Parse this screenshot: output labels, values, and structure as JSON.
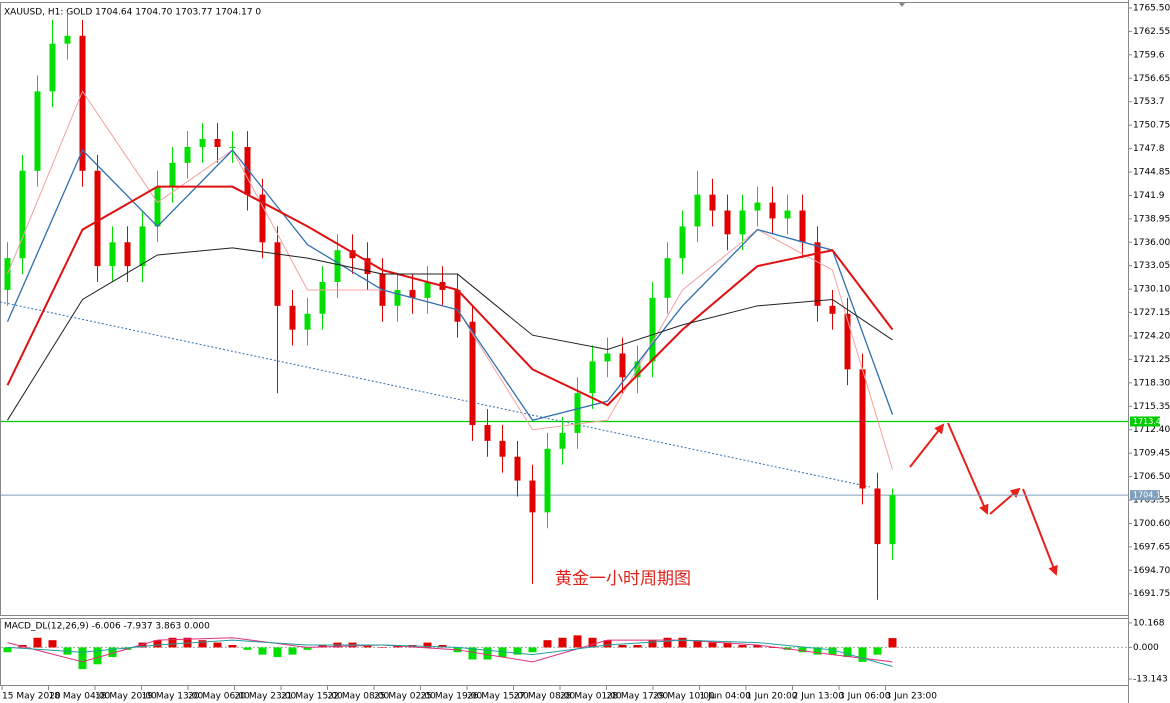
{
  "chart_data": {
    "type": "candlestick",
    "title": "XAUUSD, H1: GOLD 1704.64 1704.70 1703.77 1704.17 0",
    "annotation": "黄金一小时周期图",
    "ylim": [
      1689.2,
      1766.0
    ],
    "yticks": [
      {
        "value": 1765.5,
        "label": "1765.50"
      },
      1762.55,
      1759.6,
      1756.65,
      1753.7,
      1750.75,
      1747.8,
      1744.85,
      1741.9,
      1738.95,
      {
        "value": 1736,
        "label": "1736.00"
      },
      1733.05,
      {
        "value": 1730.1,
        "label": "1730.10"
      },
      1727.15,
      {
        "value": 1724.2,
        "label": "1724.20"
      },
      1721.25,
      {
        "value": 1718.3,
        "label": "1718.30"
      },
      1715.35,
      {
        "value": 1712.4,
        "label": "1712.40"
      },
      1709.45,
      {
        "value": 1706.5,
        "label": "1706.50"
      },
      1703.55,
      {
        "value": 1700.6,
        "label": "1700.60"
      },
      1697.65,
      {
        "value": 1694.7,
        "label": "1694.70"
      },
      1691.75
    ],
    "xlabels": [
      "15 May 2020",
      "18 May 04:00",
      "18 May 20:00",
      "19 May 13:00",
      "20 May 06:00",
      "20 May 23:00",
      "21 May 15:00",
      "22 May 08:00",
      "25 May 02:00",
      "25 May 19:00",
      "26 May 15:00",
      "27 May 08:00",
      "28 May 01:00",
      "28 May 17:00",
      "29 May 10:00",
      "1 Jun 04:00",
      "1 Jun 20:00",
      "2 Jun 13:00",
      "3 Jun 06:00",
      "3 Jun 23:00"
    ],
    "up_color": "#00e000",
    "down_color": "#e00000",
    "open": [
      1730,
      1734,
      1745,
      1755,
      1761,
      1762,
      1745,
      1733,
      1736,
      1733,
      1738,
      1743,
      1746,
      1748,
      1749,
      1748,
      1748,
      1742,
      1736,
      1728,
      1725,
      1727,
      1731,
      1735,
      1734,
      1732,
      1728,
      1730,
      1729,
      1731,
      1730,
      1726,
      1713,
      1711,
      1709,
      1706,
      1702,
      1710,
      1712,
      1717,
      1721,
      1722,
      1719,
      1721,
      1729,
      1734,
      1738,
      1742,
      1740,
      1737,
      1740,
      1741,
      1739,
      1740,
      1736,
      1728,
      1727,
      1720,
      1705,
      1698
    ],
    "high": [
      1736,
      1747,
      1757,
      1764,
      1765,
      1764,
      1747,
      1738,
      1738,
      1740,
      1745,
      1748,
      1750,
      1751,
      1751,
      1750,
      1750,
      1744,
      1738,
      1730,
      1729,
      1733,
      1737,
      1737,
      1736,
      1734,
      1732,
      1732,
      1733,
      1733,
      1732,
      1728,
      1715,
      1713,
      1711,
      1708,
      1712,
      1714,
      1719,
      1723,
      1724,
      1724,
      1723,
      1731,
      1736,
      1740,
      1745,
      1744,
      1742,
      1742,
      1743,
      1743,
      1742,
      1742,
      1738,
      1730,
      1729,
      1722,
      1707,
      1705
    ],
    "low": [
      1728,
      1732,
      1743,
      1753,
      1759,
      1743,
      1731,
      1731,
      1731,
      1731,
      1736,
      1741,
      1744,
      1746,
      1746,
      1746,
      1740,
      1734,
      1717,
      1723,
      1723,
      1725,
      1729,
      1732,
      1730,
      1726,
      1726,
      1727,
      1727,
      1728,
      1724,
      1711,
      1709,
      1707,
      1704,
      1693,
      1700,
      1708,
      1710,
      1715,
      1719,
      1717,
      1717,
      1719,
      1727,
      1732,
      1736,
      1738,
      1735,
      1735,
      1738,
      1737,
      1737,
      1734,
      1726,
      1725,
      1718,
      1703,
      1691,
      1696
    ],
    "close": [
      1734,
      1745,
      1755,
      1761,
      1762,
      1745,
      1733,
      1736,
      1733,
      1738,
      1743,
      1746,
      1748,
      1749,
      1748,
      1748,
      1742,
      1736,
      1728,
      1725,
      1727,
      1731,
      1735,
      1734,
      1732,
      1728,
      1730,
      1729,
      1731,
      1730,
      1726,
      1713,
      1711,
      1709,
      1706,
      1702,
      1710,
      1712,
      1717,
      1721,
      1722,
      1719,
      1721,
      1729,
      1734,
      1738,
      1742,
      1740,
      1737,
      1740,
      1741,
      1739,
      1740,
      1736,
      1728,
      1727,
      1720,
      1705,
      1698,
      1704.17
    ],
    "moving_averages": [
      {
        "color": "#f4a0a0",
        "width": 1,
        "x": [
          0,
          5,
          10,
          15,
          20,
          25,
          30,
          35,
          40,
          45,
          50,
          55,
          59
        ],
        "values": [
          1732,
          1755,
          1741,
          1747.6,
          1730,
          1730,
          1727.5,
          1712.4,
          1713.6,
          1730,
          1737.6,
          1732.5,
          1707.4
        ]
      },
      {
        "color": "#2f6fb0",
        "width": 1.3,
        "x": [
          0,
          5,
          10,
          15,
          20,
          25,
          30,
          35,
          40,
          45,
          50,
          55,
          59
        ],
        "values": [
          1726,
          1747.6,
          1738,
          1747.6,
          1735.7,
          1730,
          1727.5,
          1713.6,
          1716,
          1728,
          1737.6,
          1735,
          1714.3
        ]
      },
      {
        "color": "#e01010",
        "width": 2,
        "x": [
          0,
          5,
          10,
          15,
          20,
          25,
          30,
          35,
          40,
          45,
          50,
          55,
          59
        ],
        "values": [
          1718,
          1737.6,
          1743,
          1743,
          1738,
          1732.5,
          1730,
          1720,
          1715.5,
          1725,
          1733,
          1735,
          1725
        ]
      },
      {
        "color": "#202020",
        "width": 1,
        "x": [
          0,
          5,
          10,
          15,
          20,
          25,
          30,
          35,
          40,
          45,
          50,
          55,
          59
        ],
        "values": [
          1713.6,
          1728.8,
          1734.4,
          1735.3,
          1734,
          1732,
          1732,
          1724.3,
          1722.5,
          1725.6,
          1728,
          1728.8,
          1723.7
        ]
      }
    ],
    "trendline": {
      "color": "#2f6fb0",
      "x": [
        -0.5,
        57.5
      ],
      "values": [
        1728.5,
        1705.2
      ]
    },
    "level": {
      "value": 1713.44,
      "color": "#00cc00"
    },
    "current_price": {
      "value": 1704.17,
      "color": "#7f9fbf"
    },
    "macd": {
      "title": "MACD_DL(12,26,9) -6.006 -7.937 3.863 0.000",
      "ylim": [
        -15.2,
        11.8
      ],
      "yticks": [
        10.168,
        {
          "value": 0,
          "label": "0.000"
        },
        -13.143
      ],
      "histogram": [
        -2,
        1,
        4,
        3,
        -3,
        -9,
        -7,
        -4,
        -1,
        2,
        3,
        4,
        4,
        3,
        2,
        1,
        -1,
        -3,
        -4,
        -3,
        -1,
        1,
        2,
        2,
        1,
        0,
        1,
        1,
        2,
        1,
        -2,
        -5,
        -5,
        -4,
        -3,
        -2,
        3,
        4,
        5,
        4,
        3,
        1,
        1,
        3,
        4,
        4,
        3,
        2,
        2,
        1,
        1,
        0,
        -1,
        -2,
        -3,
        -3,
        -4,
        -6,
        -3,
        3.863
      ],
      "lines": [
        {
          "color": "#e0307f",
          "x": [
            0,
            5,
            10,
            15,
            20,
            25,
            30,
            35,
            40,
            45,
            50,
            55,
            59
          ],
          "values": [
            2,
            -6,
            3,
            4,
            0,
            1,
            -1,
            -6,
            3,
            3,
            1,
            -3,
            -6.006
          ]
        },
        {
          "color": "#20a0a0",
          "x": [
            0,
            5,
            10,
            15,
            20,
            25,
            30,
            35,
            40,
            45,
            50,
            55,
            59
          ],
          "values": [
            0,
            -2,
            1,
            3,
            1,
            1,
            0,
            -3,
            1,
            3,
            2,
            -1,
            -7.937
          ]
        }
      ]
    }
  }
}
